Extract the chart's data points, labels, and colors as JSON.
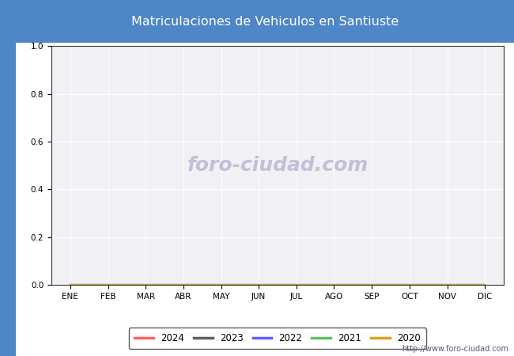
{
  "title": "Matriculaciones de Vehiculos en Santiuste",
  "title_bgcolor": "#4e86c8",
  "title_color": "#ffffff",
  "months": [
    "ENE",
    "FEB",
    "MAR",
    "ABR",
    "MAY",
    "JUN",
    "JUL",
    "AGO",
    "SEP",
    "OCT",
    "NOV",
    "DIC"
  ],
  "ylim": [
    0.0,
    1.0
  ],
  "yticks": [
    0.0,
    0.2,
    0.4,
    0.6,
    0.8,
    1.0
  ],
  "series": [
    {
      "year": "2024",
      "color": "#ff6060",
      "data": [
        0,
        0,
        0,
        0,
        0,
        0,
        0,
        0,
        0,
        0,
        0,
        0
      ]
    },
    {
      "year": "2023",
      "color": "#606060",
      "data": [
        0,
        0,
        0,
        0,
        0,
        0,
        0,
        0,
        0,
        0,
        0,
        0
      ]
    },
    {
      "year": "2022",
      "color": "#6060ff",
      "data": [
        0,
        0,
        0,
        0,
        0,
        0,
        0,
        0,
        0,
        0,
        0,
        0
      ]
    },
    {
      "year": "2021",
      "color": "#60c060",
      "data": [
        0,
        0,
        0,
        0,
        0,
        0,
        0,
        0,
        0,
        0,
        0,
        0
      ]
    },
    {
      "year": "2020",
      "color": "#e0a020",
      "data": [
        0,
        0,
        0,
        0,
        0,
        0,
        0,
        0,
        0,
        0,
        0,
        0
      ]
    }
  ],
  "plot_bgcolor": "#f0f0f5",
  "grid_color": "#ffffff",
  "watermark": "foro-ciudad.com",
  "watermark_color": "#c0c0d8",
  "url_text": "http://www.foro-ciudad.com",
  "background_color": "#4e86c8",
  "fig_inner_bg": "#ffffff"
}
